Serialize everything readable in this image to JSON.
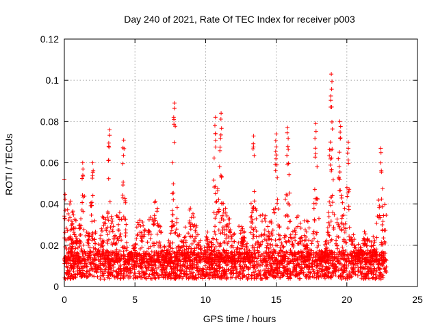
{
  "chart_data": {
    "type": "scatter",
    "title": "Day 240 of 2021, Rate Of TEC Index for receiver p003",
    "xlabel": "GPS time / hours",
    "ylabel": "ROTI / TECUs",
    "xlim": [
      0,
      25
    ],
    "ylim": [
      0,
      0.12
    ],
    "xticks": [
      0,
      5,
      10,
      15,
      20,
      25
    ],
    "yticks": [
      0,
      0.02,
      0.04,
      0.06,
      0.08,
      0.1,
      0.12
    ],
    "xtick_labels": [
      "0",
      "5",
      "10",
      "15",
      "20",
      "25"
    ],
    "ytick_labels": [
      "0",
      "0.02",
      "0.04",
      "0.06",
      "0.08",
      "0.1",
      "0.12"
    ],
    "grid": true,
    "marker": "+",
    "color": "#ff0000",
    "series": [
      {
        "name": "p003",
        "time_range_hours": [
          0,
          22.8
        ],
        "baseline_roti": 0.012,
        "peaks": [
          {
            "x": 0.0,
            "y": 0.052
          },
          {
            "x": 1.3,
            "y": 0.06
          },
          {
            "x": 2.0,
            "y": 0.06
          },
          {
            "x": 3.2,
            "y": 0.076
          },
          {
            "x": 4.2,
            "y": 0.071
          },
          {
            "x": 7.8,
            "y": 0.089
          },
          {
            "x": 10.7,
            "y": 0.082
          },
          {
            "x": 11.1,
            "y": 0.084
          },
          {
            "x": 13.4,
            "y": 0.073
          },
          {
            "x": 15.0,
            "y": 0.074
          },
          {
            "x": 15.8,
            "y": 0.077
          },
          {
            "x": 17.8,
            "y": 0.079
          },
          {
            "x": 18.9,
            "y": 0.103
          },
          {
            "x": 19.5,
            "y": 0.08
          },
          {
            "x": 20.1,
            "y": 0.07
          },
          {
            "x": 22.4,
            "y": 0.067
          }
        ]
      }
    ]
  }
}
